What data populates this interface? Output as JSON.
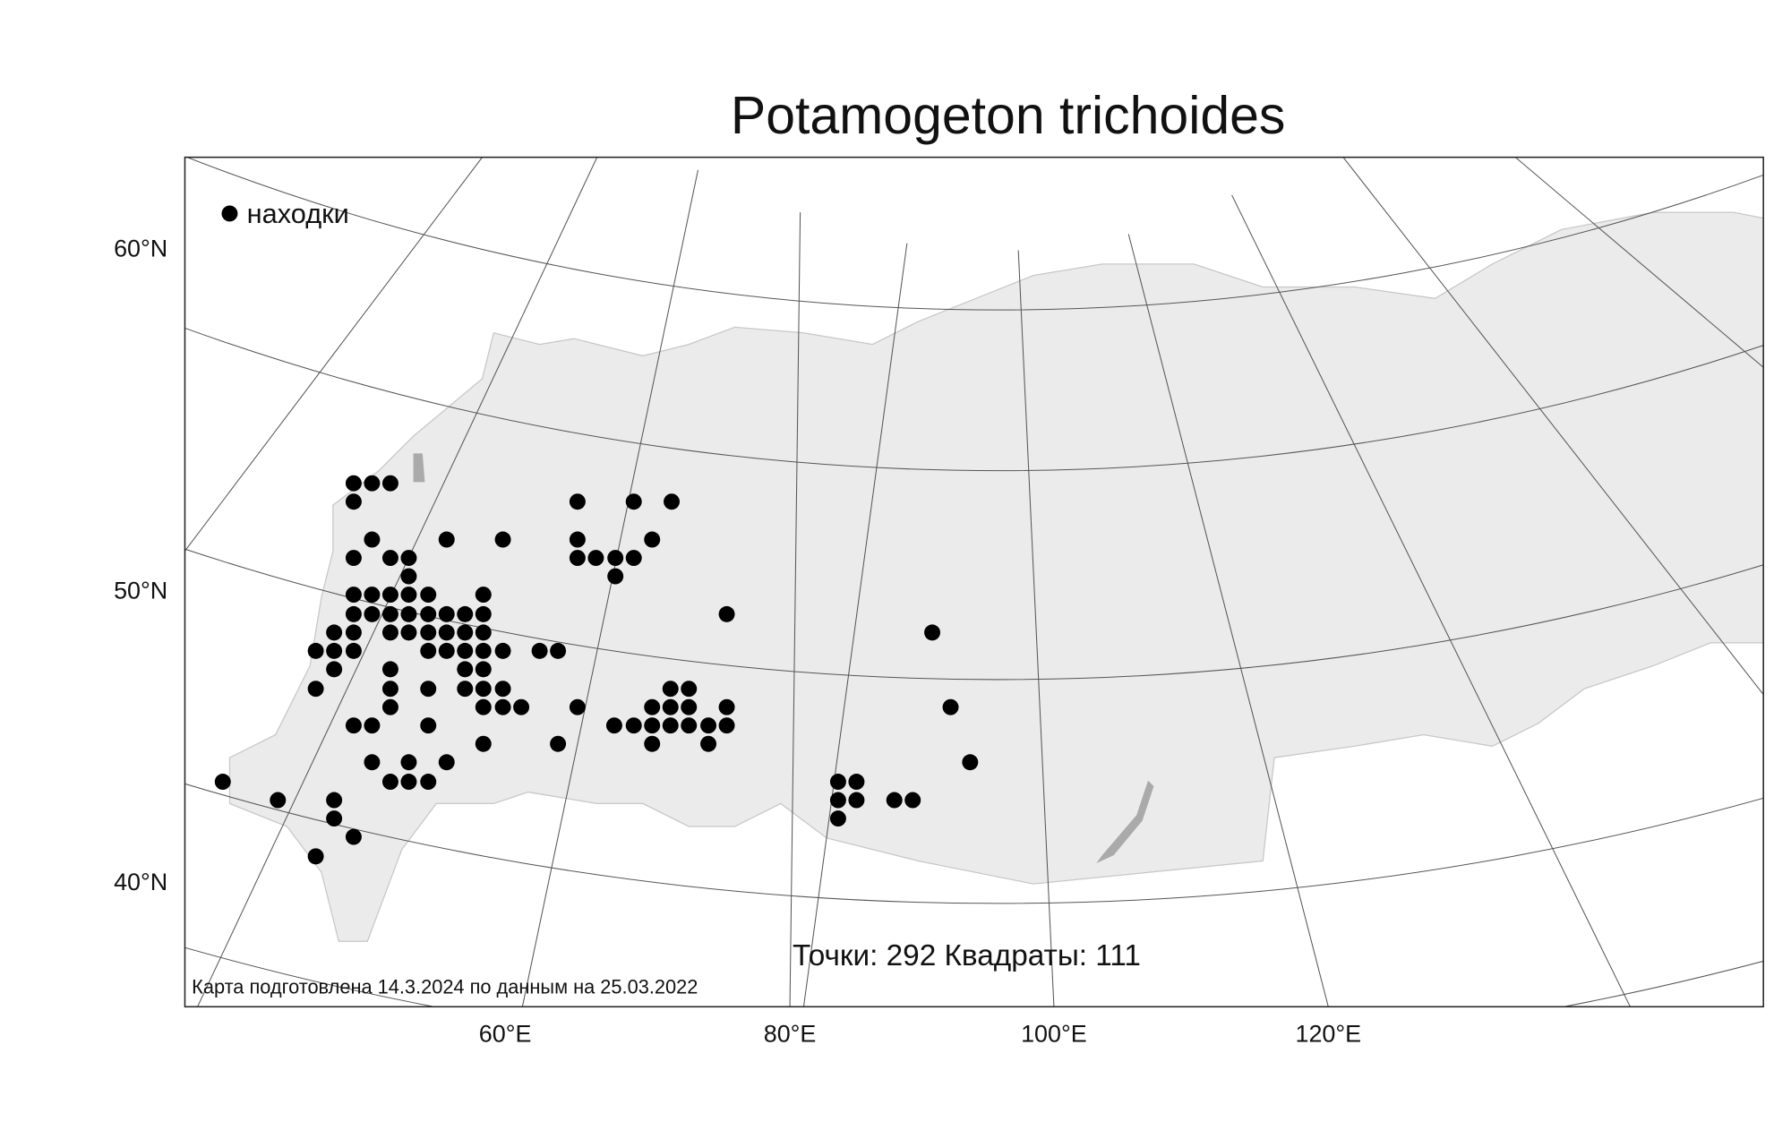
{
  "title": "Potamogeton trichoides",
  "legend": "находки",
  "lat_labels": [
    "60°N",
    "50°N",
    "40°N"
  ],
  "lon_labels": [
    "60°E",
    "80°E",
    "100°E",
    "120°E"
  ],
  "stats": "Точки: 292 Квадраты: 111",
  "footer": "Карта подготовлена 14.3.2024 по данным на 25.03.2022"
}
